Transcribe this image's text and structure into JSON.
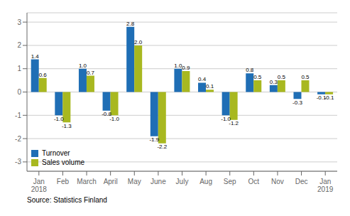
{
  "chart_data": {
    "type": "bar",
    "categories": [
      "Jan\n2018",
      "Feb",
      "March",
      "April",
      "May",
      "June",
      "July",
      "Aug",
      "Sep",
      "Oct",
      "Nov",
      "Dec",
      "Jan\n2019"
    ],
    "series": [
      {
        "name": "Turnover",
        "color": "#1f6eb5",
        "values": [
          1.4,
          -1.0,
          1.0,
          -0.8,
          2.8,
          -1.9,
          1.0,
          0.4,
          -1.0,
          0.8,
          0.3,
          -0.3,
          -0.1
        ],
        "value_labels": [
          "1.4",
          "-1.0",
          "1.0",
          "-0.8",
          "2.8",
          "-1.9",
          "1.0",
          "0.4",
          "-1.0",
          "0.8",
          "0.3",
          "-0.3",
          "-0.1"
        ]
      },
      {
        "name": "Sales volume",
        "color": "#a8b820",
        "values": [
          0.6,
          -1.3,
          0.7,
          -1.0,
          2.0,
          -2.2,
          0.9,
          0.1,
          -1.2,
          0.5,
          0.5,
          0.5,
          -0.1
        ],
        "value_labels": [
          "0.6",
          "-1.3",
          "0.7",
          "-1.0",
          "2.0",
          "-2.2",
          "0.9",
          "0.1",
          "-1.2",
          "0.5",
          "0.5",
          "0.5",
          "-0.1"
        ]
      }
    ],
    "ylim": [
      -3.4,
      3.4
    ],
    "yticks": [
      -3,
      -2,
      -1,
      0,
      1,
      2,
      3
    ],
    "grid": true,
    "legend": "lower left",
    "data_labels": true,
    "annotations": [
      "Source: Statistics Finland"
    ]
  }
}
